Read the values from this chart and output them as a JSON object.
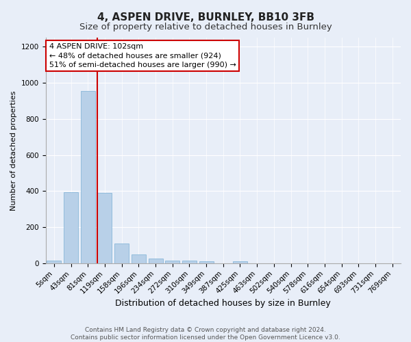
{
  "title1": "4, ASPEN DRIVE, BURNLEY, BB10 3FB",
  "title2": "Size of property relative to detached houses in Burnley",
  "xlabel": "Distribution of detached houses by size in Burnley",
  "ylabel": "Number of detached properties",
  "categories": [
    "5sqm",
    "43sqm",
    "81sqm",
    "119sqm",
    "158sqm",
    "196sqm",
    "234sqm",
    "272sqm",
    "310sqm",
    "349sqm",
    "387sqm",
    "425sqm",
    "463sqm",
    "502sqm",
    "540sqm",
    "578sqm",
    "616sqm",
    "654sqm",
    "693sqm",
    "731sqm",
    "769sqm"
  ],
  "values": [
    15,
    395,
    955,
    390,
    110,
    50,
    25,
    15,
    15,
    10,
    0,
    10,
    0,
    0,
    0,
    0,
    0,
    0,
    0,
    0,
    0
  ],
  "bar_color": "#b8d0e8",
  "bar_edge_color": "#7aafd4",
  "bar_width": 0.85,
  "vline_color": "#cc0000",
  "annotation_line1": "4 ASPEN DRIVE: 102sqm",
  "annotation_line2": "← 48% of detached houses are smaller (924)",
  "annotation_line3": "51% of semi-detached houses are larger (990) →",
  "annotation_box_color": "#ffffff",
  "annotation_box_edge_color": "#cc0000",
  "ylim": [
    0,
    1250
  ],
  "yticks": [
    0,
    200,
    400,
    600,
    800,
    1000,
    1200
  ],
  "bg_color": "#e8eef8",
  "plot_bg_color": "#e8eef8",
  "footer": "Contains HM Land Registry data © Crown copyright and database right 2024.\nContains public sector information licensed under the Open Government Licence v3.0.",
  "title1_fontsize": 11,
  "title2_fontsize": 9.5,
  "xlabel_fontsize": 9,
  "ylabel_fontsize": 8,
  "tick_fontsize": 7.5,
  "annotation_fontsize": 8,
  "footer_fontsize": 6.5
}
